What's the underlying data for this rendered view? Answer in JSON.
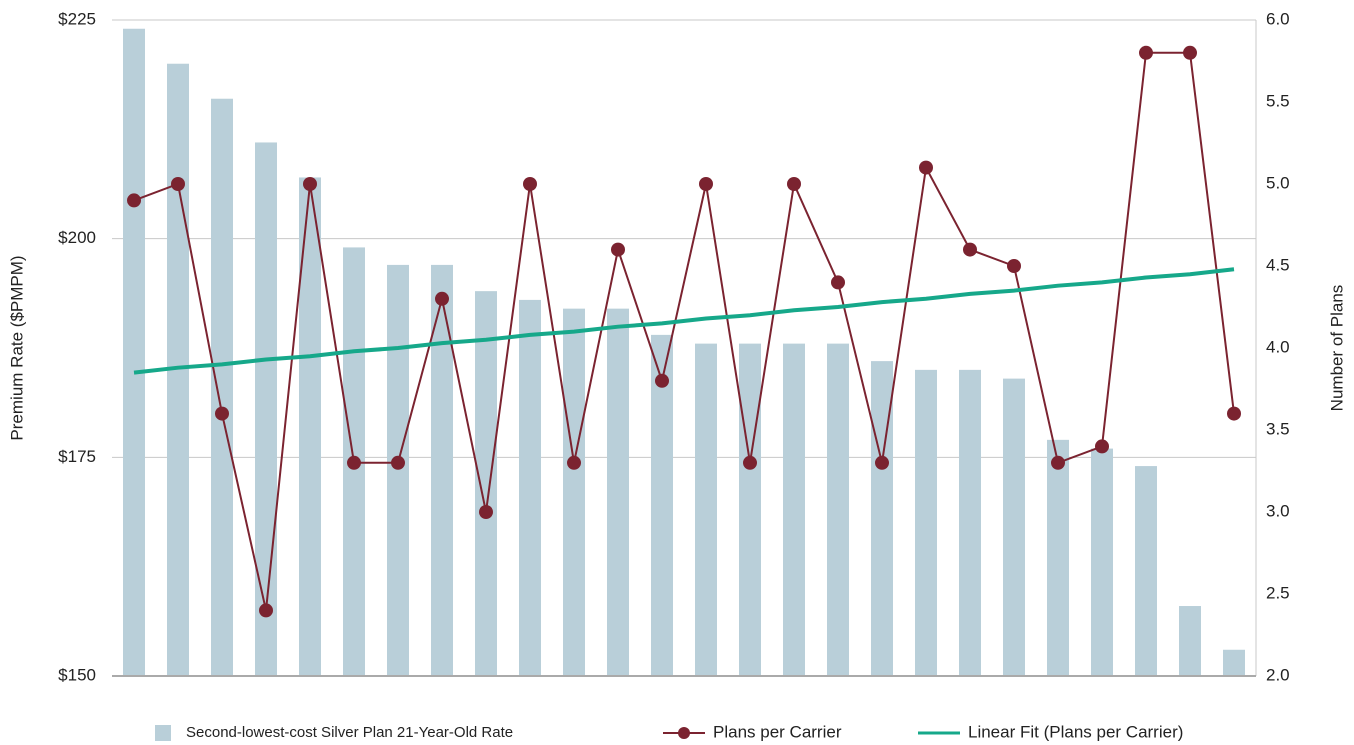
{
  "chart_data": {
    "type": "bar",
    "y_label": "Premium Rate ($PMPM)",
    "y2_label": "Number of Plans",
    "categories": [
      null,
      null,
      null,
      null,
      null,
      null,
      null,
      null,
      null,
      null,
      null,
      null,
      null,
      null,
      null,
      null,
      null,
      null,
      null,
      null,
      null,
      null,
      null,
      null,
      null,
      null
    ],
    "series": [
      {
        "name": "Second-lowest-cost Silver Plan 21-Year-Old Rate",
        "type": "bar",
        "color": "#b9cfd9",
        "values": [
          224,
          220,
          216,
          211,
          207,
          199,
          197,
          197,
          194,
          193,
          192,
          192,
          189,
          188,
          188,
          188,
          188,
          186,
          185,
          185,
          184,
          177,
          176,
          174,
          158,
          153
        ]
      },
      {
        "name": "Plans per Carrier",
        "type": "line",
        "axis": "y2",
        "color": "#7b2330",
        "marker": true,
        "values": [
          4.9,
          5.0,
          3.6,
          2.4,
          5.0,
          3.3,
          3.3,
          4.3,
          3.0,
          5.0,
          3.3,
          4.6,
          3.8,
          5.0,
          3.3,
          5.0,
          4.4,
          3.3,
          5.1,
          4.6,
          4.5,
          3.3,
          3.4,
          5.8,
          5.8,
          3.6
        ]
      },
      {
        "name": "Linear Fit (Plans per Carrier)",
        "type": "line",
        "axis": "y2",
        "color": "#16a88a",
        "marker": false,
        "values": [
          3.85,
          3.88,
          3.9,
          3.93,
          3.95,
          3.98,
          4.0,
          4.03,
          4.05,
          4.08,
          4.1,
          4.13,
          4.15,
          4.18,
          4.2,
          4.23,
          4.25,
          4.28,
          4.3,
          4.33,
          4.35,
          4.38,
          4.4,
          4.43,
          4.45,
          4.48
        ]
      }
    ],
    "ylim": [
      150,
      225
    ],
    "yticks": [
      {
        "value": 150,
        "label": "$150"
      },
      {
        "value": 175,
        "label": "$175"
      },
      {
        "value": 200,
        "label": "$200"
      },
      {
        "value": 225,
        "label": "$225"
      }
    ],
    "y2lim": [
      2,
      6
    ],
    "y2ticks": [
      {
        "value": 2,
        "label": "2.0"
      },
      {
        "value": 2.5,
        "label": "2.5"
      },
      {
        "value": 3,
        "label": "3.0"
      },
      {
        "value": 3.5,
        "label": "3.5"
      },
      {
        "value": 4,
        "label": "4.0"
      },
      {
        "value": 4.5,
        "label": "4.5"
      },
      {
        "value": 5,
        "label": "5.0"
      },
      {
        "value": 5.5,
        "label": "5.5"
      },
      {
        "value": 6,
        "label": "6.0"
      }
    ],
    "grid": true,
    "legend": "bottom"
  }
}
